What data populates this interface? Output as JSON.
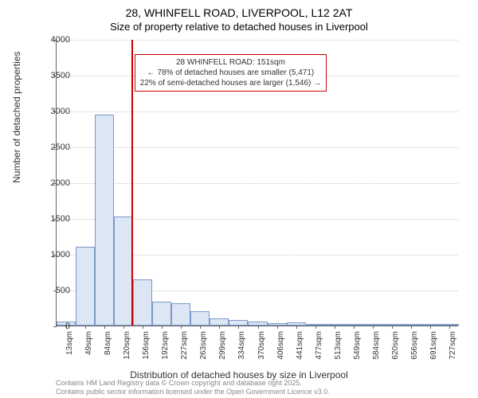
{
  "chart": {
    "type": "histogram",
    "title_main": "28, WHINFELL ROAD, LIVERPOOL, L12 2AT",
    "title_sub": "Size of property relative to detached houses in Liverpool",
    "y_axis_label": "Number of detached properties",
    "x_axis_label": "Distribution of detached houses by size in Liverpool",
    "ylim": [
      0,
      4000
    ],
    "ytick_step": 500,
    "y_ticks": [
      0,
      500,
      1000,
      1500,
      2000,
      2500,
      3000,
      3500,
      4000
    ],
    "x_categories": [
      "13sqm",
      "49sqm",
      "84sqm",
      "120sqm",
      "156sqm",
      "192sqm",
      "227sqm",
      "263sqm",
      "299sqm",
      "334sqm",
      "370sqm",
      "406sqm",
      "441sqm",
      "477sqm",
      "513sqm",
      "549sqm",
      "584sqm",
      "620sqm",
      "656sqm",
      "691sqm",
      "727sqm"
    ],
    "bar_values": [
      60,
      1100,
      2950,
      1520,
      650,
      330,
      310,
      200,
      100,
      80,
      60,
      30,
      50,
      20,
      8,
      5,
      5,
      3,
      3,
      2,
      2
    ],
    "bar_color": "#dce6f5",
    "bar_border_color": "#7a99c9",
    "grid_color": "#cccccc",
    "background_color": "#ffffff",
    "axis_color": "#666666",
    "reference_line": {
      "position_index": 3.9,
      "color": "#cc0000",
      "width": 2
    },
    "annotation": {
      "line1": "28 WHINFELL ROAD: 151sqm",
      "line2": "← 78% of detached houses are smaller (5,471)",
      "line3": "22% of semi-detached houses are larger (1,546) →",
      "border_color": "#cc0000",
      "fontsize": 10
    },
    "footer": {
      "line1": "Contains HM Land Registry data © Crown copyright and database right 2025.",
      "line2": "Contains public sector information licensed under the Open Government Licence v3.0."
    },
    "title_fontsize": 14,
    "subtitle_fontsize": 13,
    "axis_label_fontsize": 12,
    "tick_label_fontsize": 11
  }
}
